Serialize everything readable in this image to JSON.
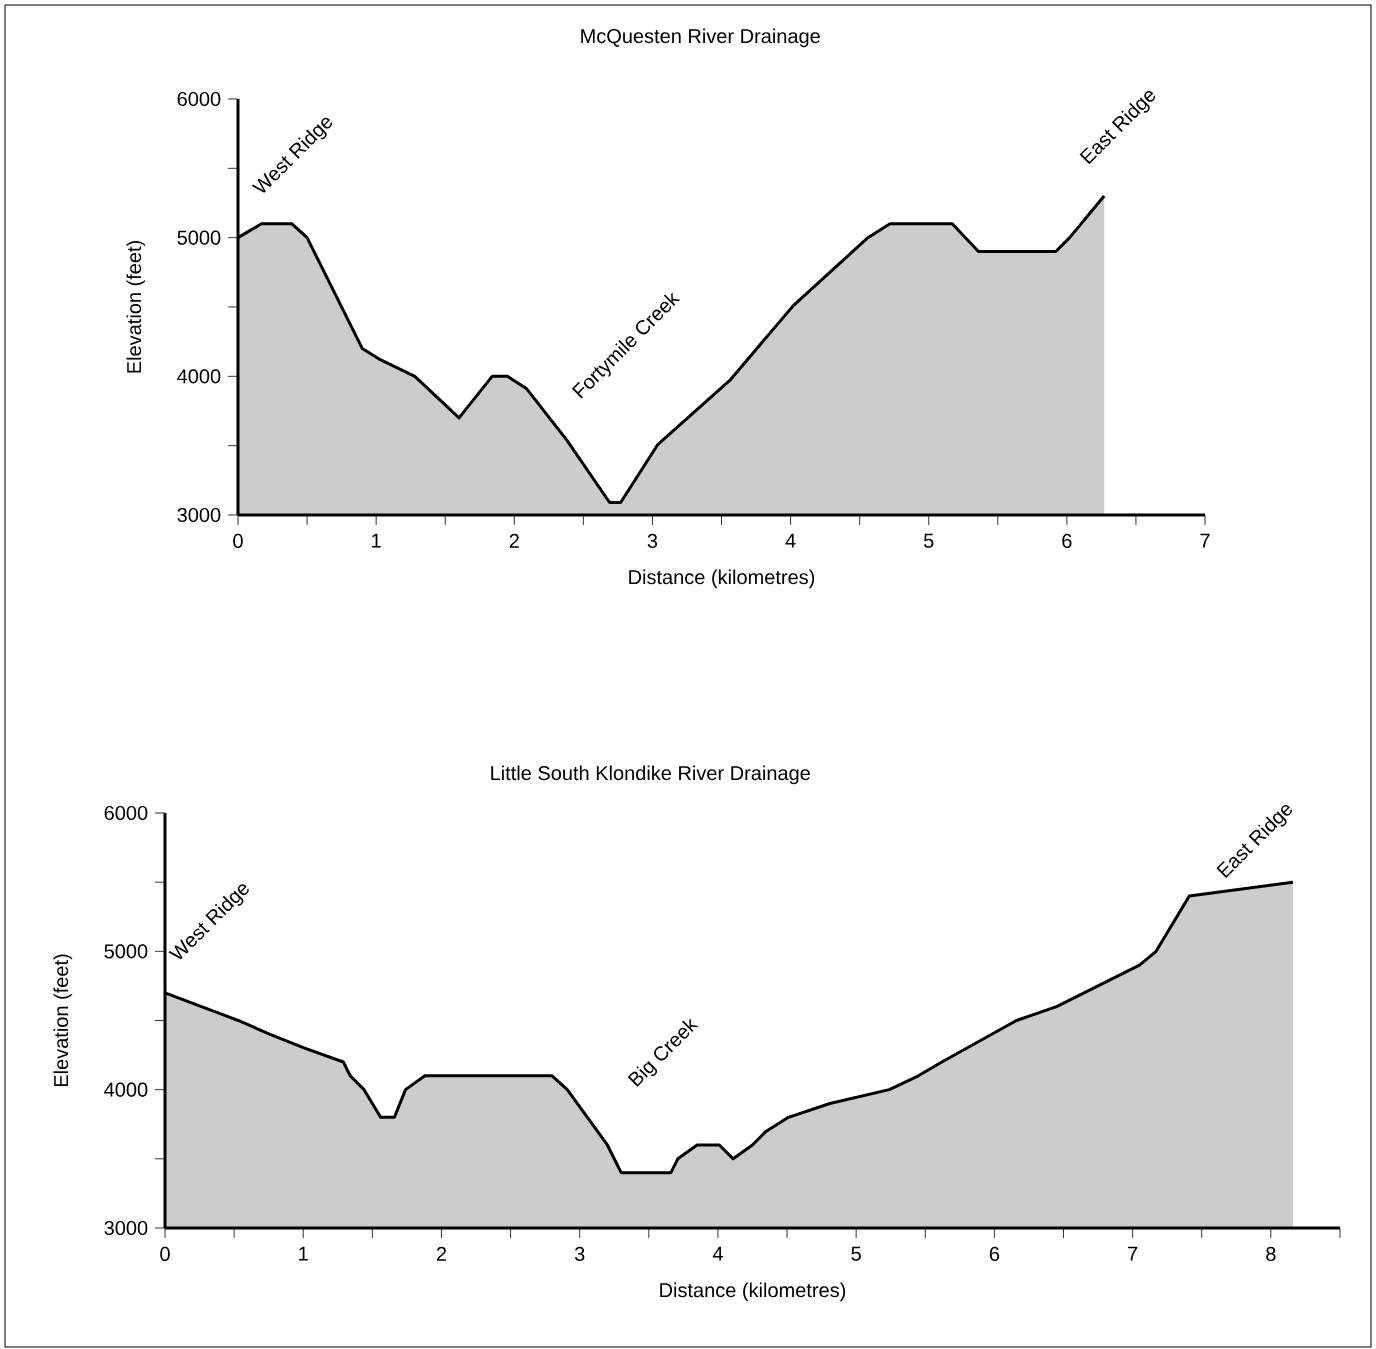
{
  "chart_data": [
    {
      "type": "area",
      "title": "McQuesten River Drainage",
      "xlabel": "Distance (kilometres)",
      "ylabel": "Elevation (feet)",
      "x": [
        0,
        0.17,
        0.39,
        0.5,
        0.9,
        1.03,
        1.28,
        1.6,
        1.84,
        1.95,
        2.09,
        2.38,
        2.69,
        2.77,
        3.04,
        3.56,
        4.02,
        4.56,
        4.72,
        5.17,
        5.36,
        5.92,
        6.02,
        6.27
      ],
      "series": [
        {
          "color": "#cccccc",
          "values": [
            5000,
            5100,
            5100,
            5000,
            4200,
            4120,
            4000,
            3700,
            4000,
            4000,
            3910,
            3540,
            3090,
            3090,
            3510,
            3970,
            4510,
            5000,
            5100,
            5100,
            4900,
            4900,
            5000,
            5300
          ]
        }
      ],
      "xlim": [
        0,
        7
      ],
      "xticks": [
        0,
        {
          "value": 0.5,
          "label": null
        },
        1,
        {
          "value": 1.5,
          "label": null
        },
        2,
        {
          "value": 2.5,
          "label": null
        },
        3,
        {
          "value": 3.5,
          "label": null
        },
        4,
        {
          "value": 4.5,
          "label": null
        },
        5,
        {
          "value": 5.5,
          "label": null
        },
        6,
        {
          "value": 6.5,
          "label": null
        },
        7
      ],
      "ylim": [
        3000,
        6000
      ],
      "yticks": [
        3000,
        {
          "value": 3500,
          "label": null
        },
        4000,
        {
          "value": 4500,
          "label": null
        },
        5000,
        {
          "value": 5500,
          "label": null
        },
        6000
      ],
      "annotations": [
        "West Ridge",
        "Fortymile Creek",
        "East Ridge"
      ]
    },
    {
      "type": "area",
      "title": "Little South Klondike River Drainage",
      "xlabel": "Distance (kilometres)",
      "ylabel": "Elevation (feet)",
      "x": [
        0,
        0.53,
        0.76,
        1.01,
        1.29,
        1.34,
        1.44,
        1.56,
        1.66,
        1.74,
        1.88,
        2.8,
        2.91,
        3.2,
        3.3,
        3.66,
        3.71,
        3.85,
        4.01,
        4.11,
        4.25,
        4.35,
        4.51,
        4.81,
        5.24,
        5.45,
        5.62,
        6.16,
        6.45,
        7.05,
        7.17,
        7.41,
        8.16
      ],
      "series": [
        {
          "color": "#cccccc",
          "values": [
            4700,
            4500,
            4400,
            4300,
            4200,
            4100,
            4000,
            3800,
            3800,
            4000,
            4100,
            4100,
            4000,
            3600,
            3400,
            3400,
            3500,
            3600,
            3600,
            3500,
            3600,
            3700,
            3800,
            3900,
            4000,
            4100,
            4200,
            4500,
            4600,
            4900,
            5000,
            5400,
            5500
          ]
        }
      ],
      "xlim": [
        0,
        8.5
      ],
      "xticks": [
        0,
        {
          "value": 0.5,
          "label": null
        },
        1,
        {
          "value": 1.5,
          "label": null
        },
        2,
        {
          "value": 2.5,
          "label": null
        },
        3,
        {
          "value": 3.5,
          "label": null
        },
        4,
        {
          "value": 4.5,
          "label": null
        },
        5,
        {
          "value": 5.5,
          "label": null
        },
        6,
        {
          "value": 6.5,
          "label": null
        },
        7,
        {
          "value": 7.5,
          "label": null
        },
        8,
        {
          "value": 8.5,
          "label": null
        }
      ],
      "ylim": [
        3000,
        6000
      ],
      "yticks": [
        3000,
        {
          "value": 3500,
          "label": null
        },
        4000,
        {
          "value": 4500,
          "label": null
        },
        5000,
        {
          "value": 5500,
          "label": null
        },
        6000
      ],
      "annotations": [
        "West Ridge",
        "Big Creek",
        "East Ridge"
      ]
    }
  ]
}
